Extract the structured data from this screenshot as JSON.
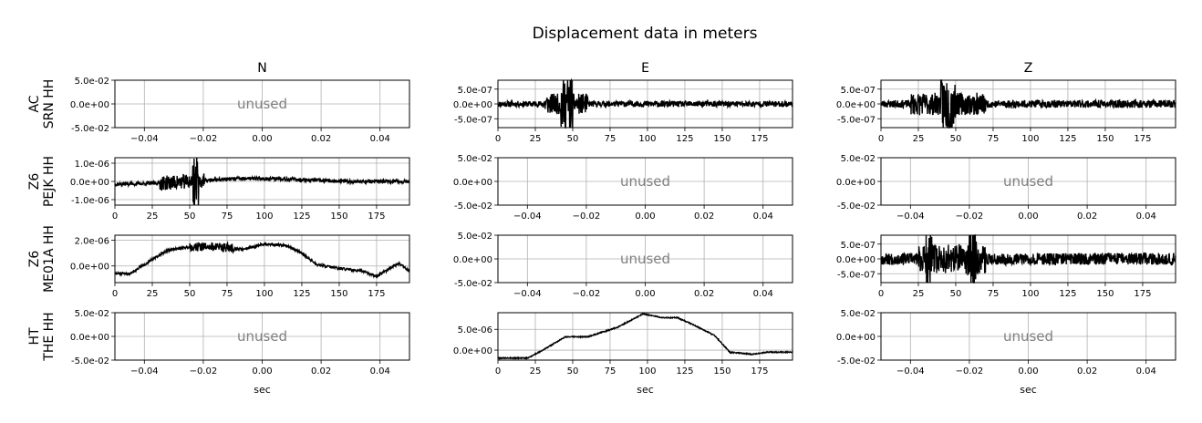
{
  "title": "Displacement data in meters",
  "chart_data": {
    "type": "line",
    "title": "Displacement data in meters",
    "columns": [
      "N",
      "E",
      "Z"
    ],
    "rows": [
      {
        "label_line1": "AC",
        "label_line2": "SRN HH"
      },
      {
        "label_line1": "Z6",
        "label_line2": "PEJK HH"
      },
      {
        "label_line1": "Z6",
        "label_line2": "ME01A HH"
      },
      {
        "label_line1": "HT",
        "label_line2": "THE HH"
      }
    ],
    "xlabel": "sec",
    "unused_text": "unused",
    "line_color": "#000000",
    "grid": true,
    "panels": [
      {
        "row": 0,
        "col": 0,
        "unused": true,
        "xlim": [
          -0.05,
          0.05
        ],
        "ylim": [
          -0.05,
          0.05
        ],
        "xticks": [
          "−0.04",
          "−0.02",
          "0.00",
          "0.02",
          "0.04"
        ],
        "xtick_values": [
          -0.04,
          -0.02,
          0.0,
          0.02,
          0.04
        ],
        "yticks": [
          "5.0e-02",
          "0.0e+00",
          "-5.0e-02"
        ],
        "ytick_values": [
          0.05,
          0.0,
          -0.05
        ]
      },
      {
        "row": 0,
        "col": 1,
        "unused": false,
        "xlim": [
          0,
          197
        ],
        "ylim": [
          -8e-07,
          8e-07
        ],
        "xticks": [
          "0",
          "25",
          "50",
          "75",
          "100",
          "125",
          "150",
          "175"
        ],
        "xtick_values": [
          0,
          25,
          50,
          75,
          100,
          125,
          150,
          175
        ],
        "yticks": [
          "5.0e-07",
          "0.0e+00",
          "-5.0e-07"
        ],
        "ytick_values": [
          5e-07,
          0,
          -5e-07
        ],
        "waveform": {
          "base": [
            [
              0,
              0
            ],
            [
              197,
              0
            ]
          ],
          "noise": 1e-07,
          "bursts": [
            [
              30,
              60,
              2.5e-07
            ],
            [
              42,
              50,
              7e-07
            ]
          ],
          "seed": 11
        }
      },
      {
        "row": 0,
        "col": 2,
        "unused": false,
        "xlim": [
          0,
          197
        ],
        "ylim": [
          -8e-07,
          8e-07
        ],
        "xticks": [
          "0",
          "25",
          "50",
          "75",
          "100",
          "125",
          "150",
          "175"
        ],
        "xtick_values": [
          0,
          25,
          50,
          75,
          100,
          125,
          150,
          175
        ],
        "yticks": [
          "5.0e-07",
          "0.0e+00",
          "-5.0e-07"
        ],
        "ytick_values": [
          5e-07,
          0,
          -5e-07
        ],
        "waveform": {
          "base": [
            [
              0,
              0
            ],
            [
              197,
              0
            ]
          ],
          "noise": 1.3e-07,
          "bursts": [
            [
              20,
              70,
              2.5e-07
            ],
            [
              40,
              50,
              6.5e-07
            ]
          ],
          "seed": 23
        }
      },
      {
        "row": 1,
        "col": 0,
        "unused": false,
        "xlim": [
          0,
          197
        ],
        "ylim": [
          -1.3e-06,
          1.3e-06
        ],
        "xticks": [
          "0",
          "25",
          "50",
          "75",
          "100",
          "125",
          "150",
          "175"
        ],
        "xtick_values": [
          0,
          25,
          50,
          75,
          100,
          125,
          150,
          175
        ],
        "yticks": [
          "1.0e-06",
          "0.0e+00",
          "-1.0e-06"
        ],
        "ytick_values": [
          1e-06,
          0,
          -1e-06
        ],
        "waveform": {
          "base": [
            [
              0,
              -1.5e-07
            ],
            [
              30,
              -1e-07
            ],
            [
              80,
              1.5e-07
            ],
            [
              110,
              1.5e-07
            ],
            [
              150,
              0
            ],
            [
              197,
              0
            ]
          ],
          "noise": 1e-07,
          "bursts": [
            [
              30,
              60,
              3e-07
            ],
            [
              52,
              56,
              1.2e-06
            ]
          ],
          "seed": 37
        }
      },
      {
        "row": 1,
        "col": 1,
        "unused": true,
        "xlim": [
          -0.05,
          0.05
        ],
        "ylim": [
          -0.05,
          0.05
        ],
        "xticks": [
          "−0.04",
          "−0.02",
          "0.00",
          "0.02",
          "0.04"
        ],
        "xtick_values": [
          -0.04,
          -0.02,
          0.0,
          0.02,
          0.04
        ],
        "yticks": [
          "5.0e-02",
          "0.0e+00",
          "-5.0e-02"
        ],
        "ytick_values": [
          0.05,
          0.0,
          -0.05
        ]
      },
      {
        "row": 1,
        "col": 2,
        "unused": true,
        "xlim": [
          -0.05,
          0.05
        ],
        "ylim": [
          -0.05,
          0.05
        ],
        "xticks": [
          "−0.04",
          "−0.02",
          "0.00",
          "0.02",
          "0.04"
        ],
        "xtick_values": [
          -0.04,
          -0.02,
          0.0,
          0.02,
          0.04
        ],
        "yticks": [
          "5.0e-02",
          "0.0e+00",
          "-5.0e-02"
        ],
        "ytick_values": [
          0.05,
          0.0,
          -0.05
        ]
      },
      {
        "row": 2,
        "col": 0,
        "unused": false,
        "xlim": [
          0,
          197
        ],
        "ylim": [
          -1.3e-06,
          2.4e-06
        ],
        "xticks": [
          "0",
          "25",
          "50",
          "75",
          "100",
          "125",
          "150",
          "175"
        ],
        "xtick_values": [
          0,
          25,
          50,
          75,
          100,
          125,
          150,
          175
        ],
        "yticks": [
          "2.0e-06",
          "0.0e+00"
        ],
        "ytick_values": [
          2e-06,
          0
        ],
        "waveform": {
          "base": [
            [
              0,
              -6e-07
            ],
            [
              10,
              -6e-07
            ],
            [
              25,
              5e-07
            ],
            [
              35,
              1.2e-06
            ],
            [
              50,
              1.5e-06
            ],
            [
              70,
              1.5e-06
            ],
            [
              85,
              1.3e-06
            ],
            [
              100,
              1.7e-06
            ],
            [
              115,
              1.6e-06
            ],
            [
              125,
              1e-06
            ],
            [
              135,
              1e-07
            ],
            [
              150,
              -2e-07
            ],
            [
              165,
              -4e-07
            ],
            [
              175,
              -8e-07
            ],
            [
              190,
              2e-07
            ],
            [
              197,
              -4e-07
            ]
          ],
          "noise": 1e-07,
          "bursts": [
            [
              50,
              80,
              2.5e-07
            ]
          ],
          "seed": 51
        }
      },
      {
        "row": 2,
        "col": 1,
        "unused": true,
        "xlim": [
          -0.05,
          0.05
        ],
        "ylim": [
          -0.05,
          0.05
        ],
        "xticks": [
          "−0.04",
          "−0.02",
          "0.00",
          "0.02",
          "0.04"
        ],
        "xtick_values": [
          -0.04,
          -0.02,
          0.0,
          0.02,
          0.04
        ],
        "yticks": [
          "5.0e-02",
          "0.0e+00",
          "-5.0e-02"
        ],
        "ytick_values": [
          0.05,
          0.0,
          -0.05
        ]
      },
      {
        "row": 2,
        "col": 2,
        "unused": false,
        "xlim": [
          0,
          197
        ],
        "ylim": [
          -8e-07,
          8e-07
        ],
        "xticks": [
          "0",
          "25",
          "50",
          "75",
          "100",
          "125",
          "150",
          "175"
        ],
        "xtick_values": [
          0,
          25,
          50,
          75,
          100,
          125,
          150,
          175
        ],
        "yticks": [
          "5.0e-07",
          "0.0e+00",
          "-5.0e-07"
        ],
        "ytick_values": [
          5e-07,
          0,
          -5e-07
        ],
        "waveform": {
          "base": [
            [
              0,
              0
            ],
            [
              197,
              0
            ]
          ],
          "noise": 2e-07,
          "bursts": [
            [
              25,
              70,
              3e-07
            ],
            [
              30,
              34,
              5e-07
            ],
            [
              58,
              64,
              7.5e-07
            ]
          ],
          "seed": 67
        }
      },
      {
        "row": 3,
        "col": 0,
        "unused": true,
        "xlim": [
          -0.05,
          0.05
        ],
        "ylim": [
          -0.05,
          0.05
        ],
        "xticks": [
          "−0.04",
          "−0.02",
          "0.00",
          "0.02",
          "0.04"
        ],
        "xtick_values": [
          -0.04,
          -0.02,
          0.0,
          0.02,
          0.04
        ],
        "yticks": [
          "5.0e-02",
          "0.0e+00",
          "-5.0e-02"
        ],
        "ytick_values": [
          0.05,
          0.0,
          -0.05
        ]
      },
      {
        "row": 3,
        "col": 1,
        "unused": false,
        "xlim": [
          0,
          197
        ],
        "ylim": [
          -2.4e-06,
          9e-06
        ],
        "xticks": [
          "0",
          "25",
          "50",
          "75",
          "100",
          "125",
          "150",
          "175"
        ],
        "xtick_values": [
          0,
          25,
          50,
          75,
          100,
          125,
          150,
          175
        ],
        "yticks": [
          "5.0e-06",
          "0.0e+00"
        ],
        "ytick_values": [
          5e-06,
          0
        ],
        "waveform": {
          "base": [
            [
              0,
              -1.9e-06
            ],
            [
              20,
              -1.9e-06
            ],
            [
              30,
              0
            ],
            [
              45,
              3.2e-06
            ],
            [
              60,
              3.2e-06
            ],
            [
              80,
              5.5e-06
            ],
            [
              97,
              8.7e-06
            ],
            [
              110,
              7.8e-06
            ],
            [
              120,
              7.8e-06
            ],
            [
              130,
              6.2e-06
            ],
            [
              145,
              3.5e-06
            ],
            [
              155,
              -5e-07
            ],
            [
              170,
              -1e-06
            ],
            [
              180,
              -5e-07
            ],
            [
              197,
              -5e-07
            ]
          ],
          "noise": 1.2e-07,
          "bursts": [],
          "seed": 79
        }
      },
      {
        "row": 3,
        "col": 2,
        "unused": true,
        "xlim": [
          -0.05,
          0.05
        ],
        "ylim": [
          -0.05,
          0.05
        ],
        "xticks": [
          "−0.04",
          "−0.02",
          "0.00",
          "0.02",
          "0.04"
        ],
        "xtick_values": [
          -0.04,
          -0.02,
          0.0,
          0.02,
          0.04
        ],
        "yticks": [
          "5.0e-02",
          "0.0e+00",
          "-5.0e-02"
        ],
        "ytick_values": [
          0.05,
          0.0,
          -0.05
        ]
      }
    ]
  }
}
